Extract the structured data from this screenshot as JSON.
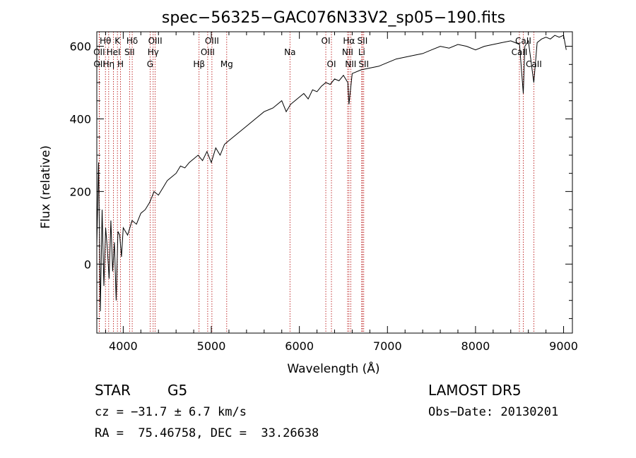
{
  "chart_data": {
    "type": "line",
    "title": "spec−56325−GAC076N33V2_sp05−190.fits",
    "xlabel": "Wavelength (Å)",
    "ylabel": "Flux (relative)",
    "xlim": [
      3700,
      9100
    ],
    "ylim": [
      -190,
      640
    ],
    "xticks": [
      4000,
      5000,
      6000,
      7000,
      8000,
      9000
    ],
    "yticks": [
      0,
      200,
      400,
      600
    ],
    "grid": false,
    "series": [
      {
        "x": [
          3700,
          3720,
          3740,
          3760,
          3780,
          3800,
          3820,
          3840,
          3860,
          3880,
          3900,
          3920,
          3940,
          3960,
          3980,
          4000,
          4050,
          4100,
          4150,
          4200,
          4250,
          4300,
          4350,
          4400,
          4450,
          4500,
          4550,
          4600,
          4650,
          4700,
          4750,
          4800,
          4850,
          4900,
          4950,
          5000,
          5050,
          5100,
          5150,
          5200,
          5300,
          5400,
          5500,
          5600,
          5700,
          5800,
          5850,
          5900,
          5950,
          6000,
          6050,
          6100,
          6150,
          6200,
          6250,
          6300,
          6350,
          6400,
          6450,
          6500,
          6550,
          6563,
          6600,
          6700,
          6800,
          6900,
          7000,
          7100,
          7200,
          7300,
          7400,
          7500,
          7600,
          7700,
          7800,
          7900,
          8000,
          8100,
          8200,
          8300,
          8400,
          8450,
          8500,
          8542,
          8560,
          8600,
          8662,
          8700,
          8750,
          8800,
          8850,
          8900,
          8950,
          9000,
          9030
        ],
        "y": [
          50,
          280,
          -130,
          150,
          -60,
          100,
          40,
          -40,
          120,
          -20,
          60,
          -100,
          90,
          80,
          20,
          100,
          80,
          120,
          110,
          140,
          150,
          170,
          200,
          190,
          210,
          230,
          240,
          250,
          270,
          265,
          280,
          290,
          300,
          285,
          310,
          280,
          320,
          300,
          330,
          340,
          360,
          380,
          400,
          420,
          430,
          450,
          420,
          440,
          450,
          460,
          470,
          455,
          480,
          475,
          490,
          500,
          495,
          510,
          505,
          520,
          500,
          440,
          525,
          535,
          540,
          545,
          555,
          565,
          570,
          575,
          580,
          590,
          600,
          595,
          605,
          600,
          590,
          600,
          605,
          610,
          615,
          610,
          605,
          470,
          600,
          615,
          500,
          610,
          620,
          625,
          620,
          630,
          625,
          630,
          590
        ]
      }
    ],
    "spectral_lines": [
      {
        "label": "Hθ",
        "wavelength": 3798,
        "row": 1
      },
      {
        "label": "OII",
        "wavelength": 3727,
        "row": 2
      },
      {
        "label": "OII",
        "wavelength": 3729,
        "row": 3
      },
      {
        "label": "Hη",
        "wavelength": 3835,
        "row": 3
      },
      {
        "label": "HeI",
        "wavelength": 3889,
        "row": 2
      },
      {
        "label": "K",
        "wavelength": 3934,
        "row": 1
      },
      {
        "label": "H",
        "wavelength": 3969,
        "row": 3
      },
      {
        "label": "SII",
        "wavelength": 4072,
        "row": 2
      },
      {
        "label": "Hδ",
        "wavelength": 4102,
        "row": 1
      },
      {
        "label": "OIII",
        "wavelength": 4363,
        "row": 1
      },
      {
        "label": "Hγ",
        "wavelength": 4340,
        "row": 2
      },
      {
        "label": "G",
        "wavelength": 4305,
        "row": 3
      },
      {
        "label": "Hβ",
        "wavelength": 4861,
        "row": 3
      },
      {
        "label": "OIII",
        "wavelength": 4959,
        "row": 2
      },
      {
        "label": "OIII",
        "wavelength": 5007,
        "row": 1
      },
      {
        "label": "Mg",
        "wavelength": 5175,
        "row": 3
      },
      {
        "label": "Na",
        "wavelength": 5893,
        "row": 2
      },
      {
        "label": "OI",
        "wavelength": 6300,
        "row": 1
      },
      {
        "label": "OI",
        "wavelength": 6364,
        "row": 3
      },
      {
        "label": "NII",
        "wavelength": 6548,
        "row": 2
      },
      {
        "label": "Hα",
        "wavelength": 6563,
        "row": 1
      },
      {
        "label": "NII",
        "wavelength": 6583,
        "row": 3
      },
      {
        "label": "Li",
        "wavelength": 6708,
        "row": 2
      },
      {
        "label": "SII",
        "wavelength": 6716,
        "row": 1
      },
      {
        "label": "SII",
        "wavelength": 6731,
        "row": 3
      },
      {
        "label": "CaII",
        "wavelength": 8498,
        "row": 2
      },
      {
        "label": "CaII",
        "wavelength": 8542,
        "row": 1
      },
      {
        "label": "CaII",
        "wavelength": 8662,
        "row": 3
      }
    ]
  },
  "info": {
    "object_class": "STAR",
    "subclass": "G5",
    "survey": "LAMOST DR5",
    "cz": "cz = −31.7 ± 6.7 km/s",
    "obs_date": "Obs−Date: 20130201",
    "coords": "RA =  75.46758, DEC =  33.26638"
  },
  "colors": {
    "line": "#000000",
    "marker": "#b30000",
    "background": "#ffffff"
  }
}
